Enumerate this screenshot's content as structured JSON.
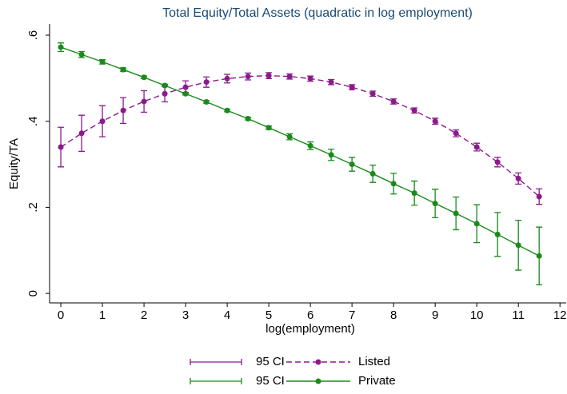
{
  "chart_data": {
    "type": "line",
    "title": "Total Equity/Total Assets (quadratic in log employment)",
    "xlabel": "log(employment)",
    "ylabel": "Equity/TA",
    "x": [
      0,
      0.5,
      1,
      1.5,
      2,
      2.5,
      3,
      3.5,
      4,
      4.5,
      5,
      5.5,
      6,
      6.5,
      7,
      7.5,
      8,
      8.5,
      9,
      9.5,
      10,
      10.5,
      11,
      11.5
    ],
    "series": [
      {
        "name": "Listed",
        "ci_label": "95 CI",
        "color": "#8b1a8b",
        "dashed": true,
        "values": [
          0.34,
          0.372,
          0.4,
          0.425,
          0.446,
          0.464,
          0.479,
          0.491,
          0.499,
          0.504,
          0.506,
          0.504,
          0.499,
          0.491,
          0.479,
          0.464,
          0.446,
          0.425,
          0.4,
          0.372,
          0.34,
          0.305,
          0.267,
          0.225
        ],
        "errors": [
          0.046,
          0.042,
          0.036,
          0.03,
          0.025,
          0.019,
          0.015,
          0.012,
          0.01,
          0.008,
          0.007,
          0.006,
          0.006,
          0.006,
          0.006,
          0.006,
          0.006,
          0.006,
          0.007,
          0.008,
          0.009,
          0.011,
          0.013,
          0.018
        ]
      },
      {
        "name": "Private",
        "ci_label": "95 CI",
        "color": "#1a8a1a",
        "dashed": false,
        "values": [
          0.572,
          0.555,
          0.538,
          0.52,
          0.502,
          0.483,
          0.464,
          0.445,
          0.425,
          0.406,
          0.385,
          0.364,
          0.343,
          0.322,
          0.3,
          0.278,
          0.255,
          0.233,
          0.209,
          0.186,
          0.162,
          0.137,
          0.112,
          0.087
        ],
        "errors": [
          0.01,
          0.007,
          0.005,
          0.004,
          0.003,
          0.003,
          0.003,
          0.003,
          0.003,
          0.003,
          0.004,
          0.007,
          0.009,
          0.013,
          0.016,
          0.02,
          0.024,
          0.028,
          0.033,
          0.038,
          0.044,
          0.051,
          0.058,
          0.067
        ]
      }
    ],
    "xlim": [
      -0.27,
      12.15
    ],
    "ylim": [
      -0.022,
      0.626
    ],
    "xticks": [
      0,
      1,
      2,
      3,
      4,
      5,
      6,
      7,
      8,
      9,
      10,
      11,
      12
    ],
    "yticks": [
      0,
      {
        "value": 0.2,
        "label": ".2"
      },
      {
        "value": 0.4,
        "label": ".4"
      },
      {
        "value": 0.6,
        "label": ".6"
      }
    ]
  }
}
